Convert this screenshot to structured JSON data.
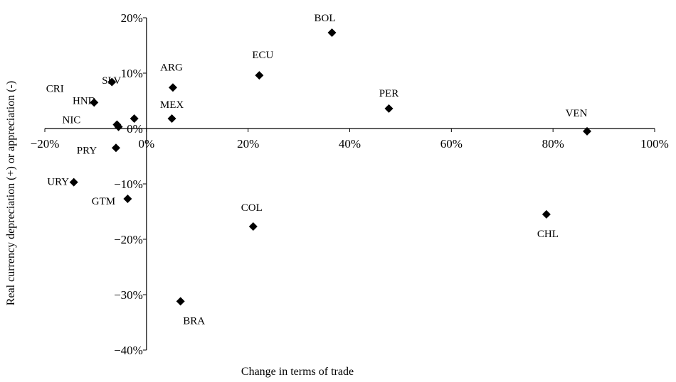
{
  "chart_data": {
    "type": "scatter",
    "title": "",
    "xlabel": "Change in terms of trade",
    "ylabel": "Real currency depreciation (+) or appreciation (-)",
    "xlim": [
      -0.2,
      1.0
    ],
    "ylim": [
      -0.4,
      0.2
    ],
    "x_ticks": [
      -0.2,
      0,
      0.2,
      0.4,
      0.6,
      0.8,
      1.0
    ],
    "x_tick_labels": [
      "−20%",
      "0%",
      "20%",
      "40%",
      "60%",
      "80%",
      "100%"
    ],
    "y_ticks": [
      0.2,
      0.1,
      0,
      -0.1,
      -0.2,
      -0.3,
      -0.4
    ],
    "y_tick_labels": [
      "20%",
      "10%",
      "0%",
      "−10%",
      "−20%",
      "−30%",
      "−40%"
    ],
    "grid": false,
    "legend": "none",
    "marker": "diamond",
    "marker_color": "#000000",
    "points": [
      {
        "label": "BOL",
        "x": 0.365,
        "y": 0.173
      },
      {
        "label": "ECU",
        "x": 0.222,
        "y": 0.096
      },
      {
        "label": "ARG",
        "x": 0.052,
        "y": 0.074
      },
      {
        "label": "CRI",
        "x": -0.068,
        "y": 0.084
      },
      {
        "label": "HND",
        "x": -0.103,
        "y": 0.047
      },
      {
        "label": "SLV",
        "x": -0.024,
        "y": 0.018
      },
      {
        "label": "MEX",
        "x": 0.05,
        "y": 0.018
      },
      {
        "label": "NIC",
        "x": -0.058,
        "y": 0.007
      },
      {
        "label": "",
        "x": -0.055,
        "y": 0.003
      },
      {
        "label": "PER",
        "x": 0.477,
        "y": 0.036
      },
      {
        "label": "VEN",
        "x": 0.867,
        "y": -0.005
      },
      {
        "label": "PRY",
        "x": -0.06,
        "y": -0.035
      },
      {
        "label": "URY",
        "x": -0.143,
        "y": -0.097
      },
      {
        "label": "GTM",
        "x": -0.037,
        "y": -0.127
      },
      {
        "label": "COL",
        "x": 0.21,
        "y": -0.177
      },
      {
        "label": "CHL",
        "x": 0.787,
        "y": -0.155
      },
      {
        "label": "BRA",
        "x": 0.067,
        "y": -0.312
      }
    ]
  }
}
